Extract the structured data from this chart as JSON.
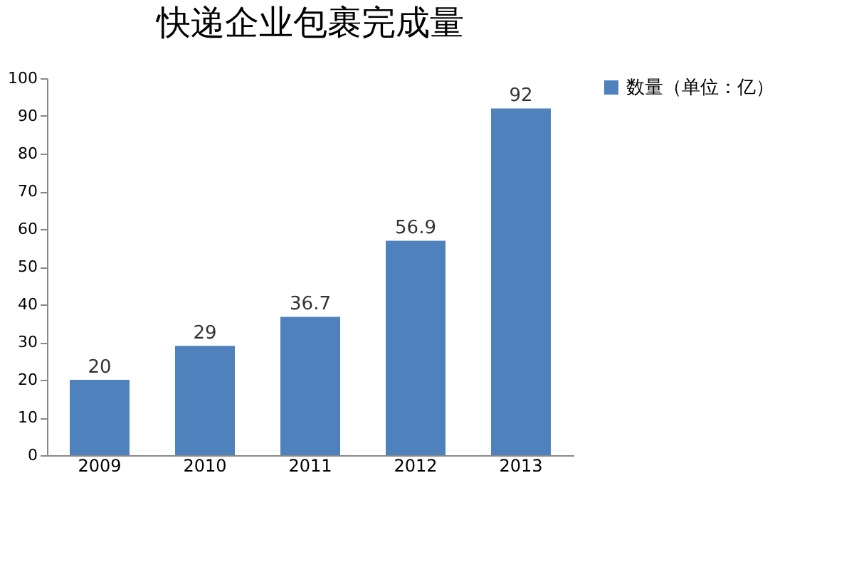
{
  "chart_data": {
    "type": "bar",
    "title": "快递企业包裹完成量",
    "categories": [
      "2009",
      "2010",
      "2011",
      "2012",
      "2013"
    ],
    "series": [
      {
        "name": "数量（单位：亿）",
        "color": "#4f81bd",
        "values": [
          20,
          29,
          36.7,
          56.9,
          92
        ]
      }
    ],
    "ylim": [
      0,
      100
    ],
    "yticks": [
      0,
      10,
      20,
      30,
      40,
      50,
      60,
      70,
      80,
      90,
      100
    ],
    "grid": false,
    "legend": "right",
    "data_labels": true
  }
}
